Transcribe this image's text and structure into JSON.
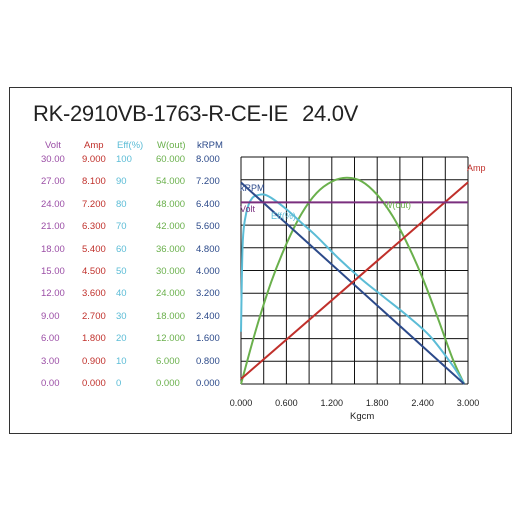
{
  "chart_data": {
    "type": "line",
    "title": "RK-2910VB-1763-R-CE-IE",
    "voltage": "24.0V",
    "xlabel": "Kgcm",
    "x_ticks": [
      "0.000",
      "0.600",
      "1.200",
      "1.800",
      "2.400",
      "3.000"
    ],
    "xlim": [
      0,
      3.0
    ],
    "axes": [
      {
        "name": "Volt",
        "color": "#9b4ea6",
        "ticks": [
          "30.00",
          "27.00",
          "24.00",
          "21.00",
          "18.00",
          "15.00",
          "12.00",
          "9.00",
          "6.00",
          "3.00",
          "0.00"
        ],
        "range": [
          0,
          30
        ]
      },
      {
        "name": "Amp",
        "color": "#c0302b",
        "ticks": [
          "9.000",
          "8.100",
          "7.200",
          "6.300",
          "5.400",
          "4.500",
          "3.600",
          "2.700",
          "1.800",
          "0.900",
          "0.000"
        ],
        "range": [
          0,
          9
        ]
      },
      {
        "name": "Eff(%)",
        "color": "#5bbcd6",
        "ticks": [
          "100",
          "90",
          "80",
          "70",
          "60",
          "50",
          "40",
          "30",
          "20",
          "10",
          "0"
        ],
        "range": [
          0,
          100
        ]
      },
      {
        "name": "W(out)",
        "color": "#6ab04c",
        "ticks": [
          "60.000",
          "54.000",
          "48.000",
          "42.000",
          "36.000",
          "30.000",
          "24.000",
          "18.000",
          "12.000",
          "6.000",
          "0.000"
        ],
        "range": [
          0,
          60
        ]
      },
      {
        "name": "kRPM",
        "color": "#2c4a8a",
        "ticks": [
          "8.000",
          "7.200",
          "6.400",
          "5.600",
          "4.800",
          "4.000",
          "3.200",
          "2.400",
          "1.600",
          "0.800",
          "0.000"
        ],
        "range": [
          0,
          8
        ]
      }
    ],
    "series": [
      {
        "name": "Volt",
        "axis": "Volt",
        "color": "#7a2f7e",
        "x": [
          0,
          3.0
        ],
        "y": [
          24.0,
          24.0
        ]
      },
      {
        "name": "Amp",
        "axis": "Amp",
        "color": "#c0302b",
        "x": [
          0,
          3.0
        ],
        "y": [
          0.2,
          8.0
        ]
      },
      {
        "name": "kRPM",
        "axis": "kRPM",
        "color": "#2c4a8a",
        "x": [
          0,
          2.95
        ],
        "y": [
          7.1,
          0
        ]
      },
      {
        "name": "Eff(%)",
        "axis": "Eff(%)",
        "color": "#5bbcd6",
        "x": [
          0.0,
          0.02,
          0.05,
          0.1,
          0.15,
          0.2,
          0.3,
          0.4,
          0.6,
          0.8,
          1.0,
          1.3,
          1.6,
          1.9,
          2.2,
          2.5,
          2.8,
          2.95
        ],
        "y": [
          23,
          60,
          72,
          79,
          82,
          83,
          83.5,
          82,
          77,
          71,
          65,
          55,
          46,
          38,
          30,
          21,
          8,
          0
        ]
      },
      {
        "name": "W(out)",
        "axis": "W(out)",
        "color": "#6ab04c",
        "x": [
          0.0,
          0.2,
          0.4,
          0.6,
          0.8,
          1.0,
          1.2,
          1.4,
          1.6,
          1.8,
          2.0,
          2.2,
          2.4,
          2.6,
          2.8,
          2.95
        ],
        "y": [
          0,
          14.5,
          27,
          37,
          45,
          50.5,
          53.5,
          54.5,
          53.5,
          50,
          44.5,
          37,
          28,
          17.5,
          6.5,
          0
        ]
      }
    ],
    "curve_labels": [
      "Amp",
      "kRPM",
      "Volt",
      "Eff(%)",
      "W(out)"
    ]
  }
}
